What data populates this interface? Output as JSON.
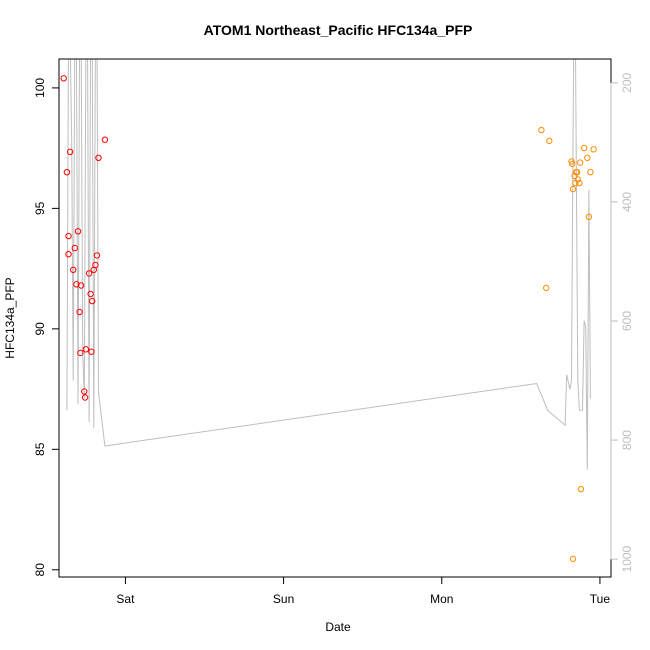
{
  "chart_data": {
    "type": "scatter",
    "title": "ATOM1 Northeast_Pacific HFC134a_PFP",
    "xlabel": "Date",
    "ylabel": "HFC134a_PFP",
    "x_ticks": [
      {
        "label": "Sat",
        "x": 1.0
      },
      {
        "label": "Sun",
        "x": 2.0
      },
      {
        "label": "Mon",
        "x": 3.0
      },
      {
        "label": "Tue",
        "x": 4.0
      }
    ],
    "xlim": [
      0.58,
      4.07
    ],
    "ylim": [
      79.7,
      101.2
    ],
    "y_ticks": [
      80,
      85,
      90,
      95,
      100
    ],
    "y2lim": [
      1030,
      160
    ],
    "y2_ticks": [
      200,
      400,
      600,
      800,
      1000
    ],
    "colors": {
      "series_1": "#ff0000",
      "series_2": "#ff8c00",
      "line": "#bebebe"
    },
    "series": [
      {
        "color": "#ff0000",
        "points": [
          {
            "x": 0.61,
            "y": 100.4
          },
          {
            "x": 0.63,
            "y": 96.5
          },
          {
            "x": 0.64,
            "y": 93.85
          },
          {
            "x": 0.64,
            "y": 93.1
          },
          {
            "x": 0.65,
            "y": 97.35
          },
          {
            "x": 0.67,
            "y": 92.45
          },
          {
            "x": 0.68,
            "y": 93.35
          },
          {
            "x": 0.69,
            "y": 91.85
          },
          {
            "x": 0.7,
            "y": 94.05
          },
          {
            "x": 0.71,
            "y": 90.7
          },
          {
            "x": 0.715,
            "y": 89.0
          },
          {
            "x": 0.72,
            "y": 91.8
          },
          {
            "x": 0.74,
            "y": 87.4
          },
          {
            "x": 0.745,
            "y": 87.15
          },
          {
            "x": 0.75,
            "y": 89.15
          },
          {
            "x": 0.77,
            "y": 92.3
          },
          {
            "x": 0.78,
            "y": 91.45
          },
          {
            "x": 0.785,
            "y": 89.05
          },
          {
            "x": 0.79,
            "y": 91.15
          },
          {
            "x": 0.8,
            "y": 92.45
          },
          {
            "x": 0.81,
            "y": 92.65
          },
          {
            "x": 0.82,
            "y": 93.05
          },
          {
            "x": 0.83,
            "y": 97.1
          },
          {
            "x": 0.87,
            "y": 97.85
          }
        ]
      },
      {
        "color": "#ff8c00",
        "points": [
          {
            "x": 3.63,
            "y": 98.25
          },
          {
            "x": 3.66,
            "y": 91.7
          },
          {
            "x": 3.68,
            "y": 97.8
          },
          {
            "x": 3.82,
            "y": 96.95
          },
          {
            "x": 3.825,
            "y": 96.85
          },
          {
            "x": 3.83,
            "y": 80.45
          },
          {
            "x": 3.83,
            "y": 95.8
          },
          {
            "x": 3.84,
            "y": 96.35
          },
          {
            "x": 3.845,
            "y": 96.05
          },
          {
            "x": 3.85,
            "y": 96.5
          },
          {
            "x": 3.855,
            "y": 96.5
          },
          {
            "x": 3.86,
            "y": 96.2
          },
          {
            "x": 3.87,
            "y": 96.05
          },
          {
            "x": 3.875,
            "y": 96.9
          },
          {
            "x": 3.88,
            "y": 83.35
          },
          {
            "x": 3.9,
            "y": 97.5
          },
          {
            "x": 3.92,
            "y": 97.1
          },
          {
            "x": 3.93,
            "y": 94.65
          },
          {
            "x": 3.94,
            "y": 96.5
          },
          {
            "x": 3.96,
            "y": 97.45
          }
        ]
      }
    ],
    "altitude_line": [
      {
        "x": 0.63,
        "y2": 750
      },
      {
        "x": 0.64,
        "y2": 120
      },
      {
        "x": 0.65,
        "y2": 120
      },
      {
        "x": 0.66,
        "y2": 300
      },
      {
        "x": 0.67,
        "y2": 700
      },
      {
        "x": 0.68,
        "y2": 120
      },
      {
        "x": 0.69,
        "y2": 120
      },
      {
        "x": 0.7,
        "y2": 740
      },
      {
        "x": 0.71,
        "y2": 120
      },
      {
        "x": 0.72,
        "y2": 120
      },
      {
        "x": 0.73,
        "y2": 650
      },
      {
        "x": 0.74,
        "y2": 730
      },
      {
        "x": 0.75,
        "y2": 120
      },
      {
        "x": 0.76,
        "y2": 120
      },
      {
        "x": 0.77,
        "y2": 770
      },
      {
        "x": 0.78,
        "y2": 120
      },
      {
        "x": 0.79,
        "y2": 120
      },
      {
        "x": 0.8,
        "y2": 780
      },
      {
        "x": 0.81,
        "y2": 120
      },
      {
        "x": 0.82,
        "y2": 120
      },
      {
        "x": 0.83,
        "y2": 720
      },
      {
        "x": 0.87,
        "y2": 810
      },
      {
        "x": 3.6,
        "y2": 705
      },
      {
        "x": 3.67,
        "y2": 750
      },
      {
        "x": 3.78,
        "y2": 775
      },
      {
        "x": 3.79,
        "y2": 690
      },
      {
        "x": 3.81,
        "y2": 715
      },
      {
        "x": 3.82,
        "y2": 700
      },
      {
        "x": 3.83,
        "y2": 300
      },
      {
        "x": 3.835,
        "y2": 120
      },
      {
        "x": 3.845,
        "y2": 120
      },
      {
        "x": 3.86,
        "y2": 700
      },
      {
        "x": 3.87,
        "y2": 750
      },
      {
        "x": 3.89,
        "y2": 750
      },
      {
        "x": 3.9,
        "y2": 600
      },
      {
        "x": 3.91,
        "y2": 610
      },
      {
        "x": 3.92,
        "y2": 850
      },
      {
        "x": 3.93,
        "y2": 380
      },
      {
        "x": 3.94,
        "y2": 730
      }
    ]
  }
}
